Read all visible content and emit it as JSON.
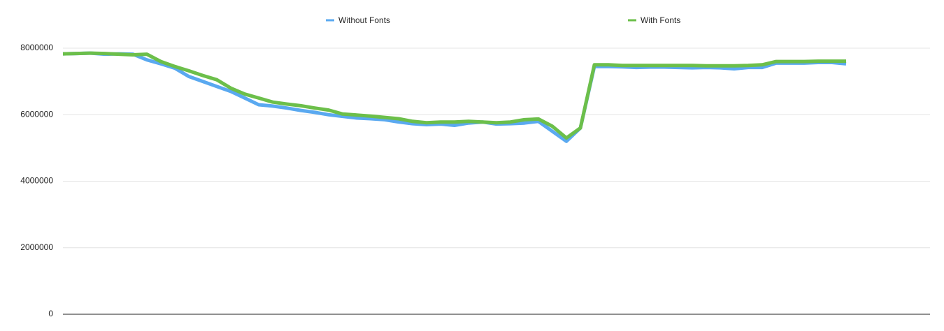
{
  "chart_data": {
    "type": "line",
    "categories": [
      null,
      null,
      null,
      null,
      null,
      null,
      null,
      null,
      null,
      null,
      null,
      null,
      null,
      null,
      null,
      null,
      null,
      null,
      null,
      null,
      null,
      null,
      null,
      null,
      null,
      null,
      null,
      null,
      null,
      null,
      null,
      null,
      null,
      null,
      null,
      null,
      null,
      null,
      null,
      null,
      null,
      null,
      null,
      null,
      null,
      null,
      null,
      null,
      null,
      null,
      null,
      null,
      null,
      null,
      null,
      null,
      null
    ],
    "series": [
      {
        "name": "Without Fonts",
        "color": "#5aa9f0",
        "values": [
          7830000,
          7840000,
          7850000,
          7820000,
          7830000,
          7820000,
          7650000,
          7530000,
          7400000,
          7150000,
          7000000,
          6850000,
          6700000,
          6500000,
          6300000,
          6260000,
          6200000,
          6130000,
          6070000,
          6000000,
          5950000,
          5900000,
          5880000,
          5850000,
          5780000,
          5730000,
          5700000,
          5720000,
          5680000,
          5750000,
          5780000,
          5720000,
          5730000,
          5750000,
          5800000,
          5500000,
          5200000,
          5600000,
          7450000,
          7450000,
          7440000,
          7420000,
          7430000,
          7430000,
          7420000,
          7410000,
          7420000,
          7410000,
          7380000,
          7420000,
          7420000,
          7550000,
          7550000,
          7550000,
          7570000,
          7570000,
          7530000
        ]
      },
      {
        "name": "With Fonts",
        "color": "#6cbf4a",
        "values": [
          7830000,
          7840000,
          7850000,
          7840000,
          7820000,
          7800000,
          7820000,
          7600000,
          7450000,
          7320000,
          7180000,
          7050000,
          6800000,
          6620000,
          6500000,
          6380000,
          6320000,
          6270000,
          6200000,
          6140000,
          6020000,
          5990000,
          5960000,
          5920000,
          5880000,
          5800000,
          5760000,
          5780000,
          5780000,
          5800000,
          5780000,
          5760000,
          5780000,
          5850000,
          5870000,
          5650000,
          5300000,
          5600000,
          7500000,
          7500000,
          7480000,
          7480000,
          7480000,
          7480000,
          7480000,
          7480000,
          7470000,
          7470000,
          7470000,
          7480000,
          7500000,
          7600000,
          7600000,
          7600000,
          7610000,
          7610000,
          7610000
        ]
      }
    ],
    "ylim": [
      0,
      8000000
    ],
    "yticks": [
      0,
      2000000,
      4000000,
      6000000,
      8000000
    ],
    "grid": true,
    "legend": "top"
  }
}
